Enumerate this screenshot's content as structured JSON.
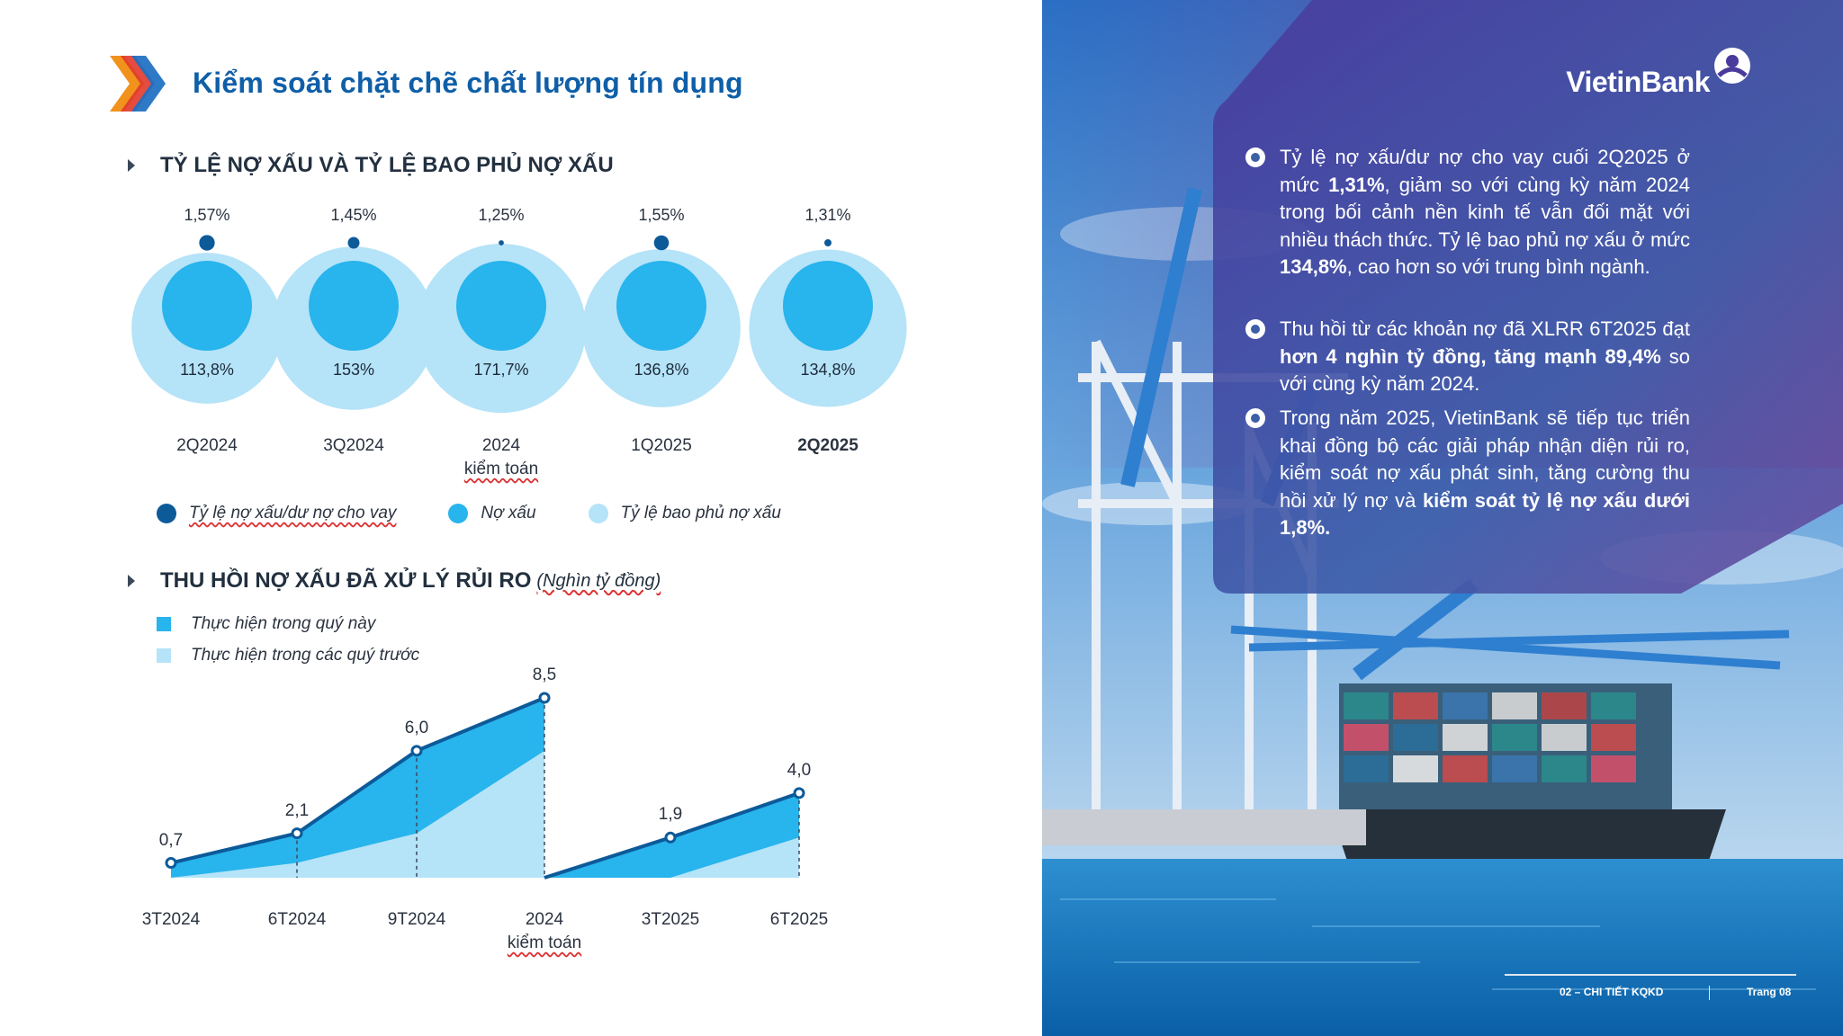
{
  "title": "Kiểm soát chặt chẽ chất lượng tín dụng",
  "section1": {
    "heading": "TỶ LỆ NỢ XẤU VÀ TỶ LỆ BAO PHỦ NỢ XẤU",
    "legend": [
      {
        "label": "Tỷ lệ nợ xấu/dư nợ cho vay",
        "color": "#0d5a99"
      },
      {
        "label": "Nợ xấu",
        "color": "#28b4ec"
      },
      {
        "label": "Tỷ lệ bao phủ nợ xấu",
        "color": "#b5e3f8"
      }
    ]
  },
  "section2": {
    "heading": "THU HỒI NỢ XẤU ĐÃ XỬ LÝ RỦI RO",
    "unit": "(Nghìn tỷ đồng)",
    "legend": [
      {
        "label": "Thực hiện trong quý này",
        "color": "#28b4ec"
      },
      {
        "label": "Thực hiện trong các quý trước",
        "color": "#b5e3f8"
      }
    ]
  },
  "chart_data": [
    {
      "type": "bubble",
      "categories": [
        "2Q2024",
        "3Q2024",
        "2024",
        "1Q2025",
        "2Q2025"
      ],
      "category_sublabels": [
        "",
        "",
        "kiểm toán",
        "",
        ""
      ],
      "series": [
        {
          "name": "Tỷ lệ nợ xấu/dư nợ cho vay",
          "values": [
            1.57,
            1.45,
            1.25,
            1.55,
            1.31
          ],
          "labels": [
            "1,57%",
            "1,45%",
            "1,25%",
            "1,55%",
            "1,31%"
          ]
        },
        {
          "name": "Tỷ lệ bao phủ nợ xấu",
          "values": [
            113.8,
            153,
            171.7,
            136.8,
            134.8
          ],
          "labels": [
            "113,8%",
            "153%",
            "171,7%",
            "136,8%",
            "134,8%"
          ]
        }
      ]
    },
    {
      "type": "area",
      "groups": [
        {
          "categories": [
            "3T2024",
            "6T2024",
            "9T2024",
            "2024"
          ],
          "totals": [
            0.7,
            2.1,
            6.0,
            8.5
          ],
          "total_labels": [
            "0,7",
            "2,1",
            "6,0",
            "8,5"
          ],
          "previous_quarters": [
            0,
            0.7,
            2.1,
            6.0
          ]
        },
        {
          "categories": [
            "3T2025",
            "6T2025"
          ],
          "totals": [
            1.9,
            4.0
          ],
          "total_labels": [
            "1,9",
            "4,0"
          ],
          "previous_quarters": [
            0,
            1.9
          ]
        }
      ],
      "category_sublabels": {
        "2024": "kiểm toán"
      },
      "ylim": [
        0,
        9
      ]
    }
  ],
  "brand": {
    "name": "VietinBank"
  },
  "bullets": [
    {
      "segments": [
        {
          "t": "Tỷ lệ nợ xấu/dư nợ cho vay cuối 2Q2025 ở mức ",
          "b": false
        },
        {
          "t": "1,31%",
          "b": true
        },
        {
          "t": ", giảm so với cùng kỳ năm 2024 trong bối cảnh nền kinh tế vẫn đối mặt với nhiều thách thức. Tỷ lệ bao phủ nợ xấu ở mức ",
          "b": false
        },
        {
          "t": "134,8%",
          "b": true
        },
        {
          "t": ", cao hơn so với trung bình ngành.",
          "b": false
        }
      ]
    },
    {
      "segments": [
        {
          "t": "Thu hồi từ các khoản nợ đã XLRR 6T2025 đạt ",
          "b": false
        },
        {
          "t": "hơn 4 nghìn tỷ đồng, tăng mạnh 89,4%",
          "b": true
        },
        {
          "t": " so với cùng kỳ năm 2024.",
          "b": false
        }
      ]
    },
    {
      "segments": [
        {
          "t": "Trong năm 2025, VietinBank sẽ tiếp tục triển khai đồng bộ các giải pháp nhận diện rủi ro, kiểm soát nợ xấu phát sinh, tăng cường thu hồi xử lý nợ và ",
          "b": false
        },
        {
          "t": "kiểm soát tỷ lệ nợ xấu dưới 1,8%.",
          "b": true
        }
      ]
    }
  ],
  "footer": {
    "section": "02 – CHI TIẾT KQKD",
    "page": "Trang 08"
  }
}
